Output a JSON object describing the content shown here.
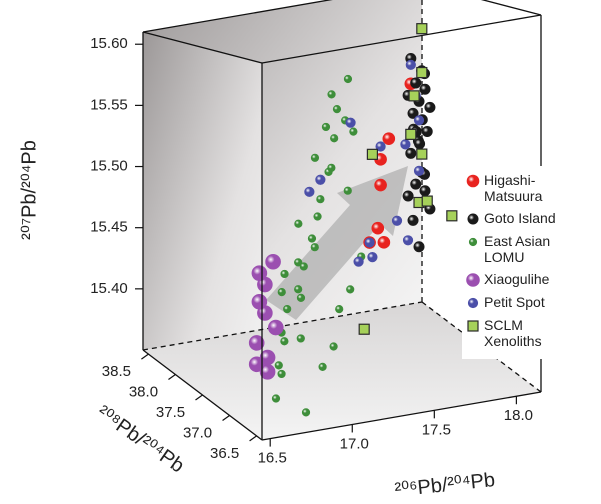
{
  "chart_data": {
    "type": "scatter3d",
    "x_label": "²⁰⁶Pb/²⁰⁴Pb",
    "y_label": "²⁰⁷Pb/²⁰⁴Pb",
    "z_label": "²⁰⁸Pb/²⁰⁴Pb",
    "xlim": [
      16.45,
      18.15
    ],
    "ylim": [
      15.35,
      15.61
    ],
    "zlim": [
      36.4,
      38.6
    ],
    "xticks": [
      16.5,
      {
        "value": 17,
        "label": "17.0"
      },
      17.5,
      {
        "value": 18,
        "label": "18.0"
      }
    ],
    "yticks": [
      {
        "value": 15.4,
        "label": "15.40"
      },
      15.45,
      {
        "value": 15.5,
        "label": "15.50"
      },
      15.55,
      {
        "value": 15.6,
        "label": "15.60"
      }
    ],
    "zticks": [
      36.5,
      {
        "value": 37,
        "label": "37.0"
      },
      37.5,
      {
        "value": 38,
        "label": "38.0"
      },
      38.5
    ],
    "series": [
      {
        "name": "Higashi-Matsuura",
        "color": "#e8231f",
        "marker": "circle",
        "x": [
          17.7,
          17.75,
          17.7,
          17.65,
          17.6,
          17.72,
          17.95
        ],
        "y": [
          15.49,
          15.505,
          15.47,
          15.44,
          15.43,
          15.425,
          15.54
        ],
        "z": [
          38.0,
          38.0,
          38.0,
          37.9,
          37.9,
          38.0,
          38.2
        ]
      },
      {
        "name": "Goto Island",
        "color": "#1a1a1a",
        "marker": "circle",
        "x": [
          17.95,
          18.0,
          18.05,
          17.98,
          18.02,
          17.95,
          18.0,
          18.05,
          17.98,
          18.02,
          17.95,
          18.0,
          18.05,
          17.98,
          18.02,
          17.95,
          18.0,
          18.05,
          17.98,
          18.02,
          17.95,
          18.0,
          18.05,
          17.98,
          18.0
        ],
        "y": [
          15.56,
          15.55,
          15.545,
          15.54,
          15.535,
          15.53,
          15.525,
          15.52,
          15.515,
          15.51,
          15.505,
          15.5,
          15.5,
          15.495,
          15.49,
          15.485,
          15.47,
          15.465,
          15.46,
          15.455,
          15.45,
          15.445,
          15.44,
          15.43,
          15.41
        ],
        "z": [
          38.2,
          38.15,
          38.25,
          38.2,
          38.15,
          38.25,
          38.2,
          38.15,
          38.25,
          38.2,
          38.15,
          38.25,
          38.2,
          38.15,
          38.25,
          38.2,
          38.15,
          38.25,
          38.2,
          38.15,
          38.25,
          38.2,
          38.15,
          38.25,
          38.2
        ]
      },
      {
        "name": "East Asian LOMU",
        "color": "#3e8e3a",
        "marker": "circle",
        "x": [
          16.7,
          16.75,
          16.8,
          16.85,
          16.8,
          16.9,
          16.95,
          16.9,
          17.0,
          17.05,
          17.0,
          17.1,
          17.15,
          17.1,
          17.2,
          17.25,
          17.2,
          17.3,
          17.35,
          17.3,
          17.4,
          17.45,
          17.4,
          17.5,
          17.55,
          17.5,
          17.6,
          17.45,
          17.35,
          17.25,
          17.15,
          17.05,
          16.95,
          16.85,
          17.5,
          17.6
        ],
        "y": [
          15.36,
          15.38,
          15.37,
          15.39,
          15.4,
          15.41,
          15.39,
          15.42,
          15.42,
          15.41,
          15.44,
          15.43,
          15.45,
          15.46,
          15.44,
          15.46,
          15.48,
          15.47,
          15.49,
          15.5,
          15.49,
          15.51,
          15.52,
          15.53,
          15.52,
          15.54,
          15.55,
          15.43,
          15.41,
          15.4,
          15.38,
          15.37,
          15.43,
          15.35,
          15.47,
          15.51
        ],
        "z": [
          36.9,
          37.0,
          37.1,
          37.2,
          37.1,
          37.3,
          37.2,
          37.4,
          37.4,
          37.5,
          37.4,
          37.6,
          37.6,
          37.7,
          37.7,
          37.8,
          37.8,
          37.9,
          37.9,
          38.0,
          38.0,
          38.1,
          38.1,
          38.2,
          38.2,
          38.3,
          38.3,
          37.6,
          37.5,
          37.4,
          37.2,
          37.1,
          37.5,
          36.8,
          38.0,
          38.2
        ]
      },
      {
        "name": "Xiaogulihe",
        "color": "#9b4fb0",
        "marker": "circle",
        "x": [
          16.55,
          16.5,
          16.55,
          16.5,
          16.6,
          16.55,
          16.5,
          16.55,
          16.5,
          16.6
        ],
        "y": [
          15.39,
          15.395,
          15.4,
          15.41,
          15.42,
          15.43,
          15.44,
          15.45,
          15.46,
          15.465
        ],
        "z": [
          36.6,
          36.65,
          36.6,
          36.65,
          36.6,
          36.65,
          36.6,
          36.65,
          36.6,
          36.65
        ]
      },
      {
        "name": "Petit Spot",
        "color": "#4b4fa8",
        "marker": "circle",
        "x": [
          17.2,
          17.3,
          17.6,
          17.5,
          17.65,
          17.7,
          17.95,
          17.98,
          18.0,
          18.0,
          17.9,
          17.55,
          17.95,
          17.8
        ],
        "y": [
          15.48,
          15.485,
          15.43,
          15.42,
          15.415,
          15.5,
          15.555,
          15.53,
          15.51,
          15.47,
          15.42,
          15.52,
          15.49,
          15.44
        ],
        "z": [
          37.8,
          37.9,
          37.9,
          37.8,
          38.0,
          38.0,
          38.2,
          38.2,
          38.2,
          38.2,
          38.1,
          38.1,
          38.3,
          38.0
        ]
      },
      {
        "name": "SCLM Xenoliths",
        "color": "#a6d15a",
        "marker": "square",
        "x": [
          18.05,
          18.05,
          17.97,
          17.95,
          18.05,
          17.65,
          18.0,
          18.05,
          18.2,
          17.6
        ],
        "y": [
          15.58,
          15.545,
          15.53,
          15.5,
          15.48,
          15.495,
          15.445,
          15.445,
          15.43,
          15.36
        ],
        "z": [
          38.3,
          38.3,
          38.2,
          38.2,
          38.3,
          38.0,
          38.2,
          38.2,
          38.2,
          38.0
        ]
      }
    ]
  }
}
